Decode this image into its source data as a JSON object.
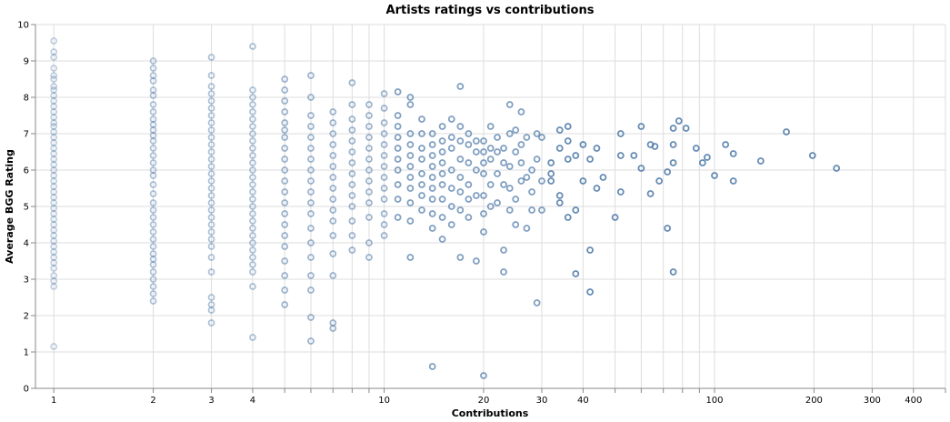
{
  "chart_data": {
    "type": "scatter",
    "title": "Artists ratings vs contributions",
    "xlabel": "Contributions",
    "ylabel": "Average BGG Rating",
    "x_scale": "log",
    "xlim": [
      0.88,
      500
    ],
    "ylim": [
      0,
      10
    ],
    "grid": true,
    "x_tick_labels": [
      "1",
      "2",
      "3",
      "4",
      "10",
      "20",
      "30",
      "40",
      "100",
      "200",
      "300",
      "400"
    ],
    "x_tick_values": [
      1,
      2,
      3,
      4,
      10,
      20,
      30,
      40,
      100,
      200,
      300,
      400
    ],
    "x_minor_ticks": [
      5,
      6,
      7,
      8,
      9,
      50,
      60,
      70,
      80,
      90,
      500
    ],
    "y_ticks": [
      0,
      1,
      2,
      3,
      4,
      5,
      6,
      7,
      8,
      9,
      10
    ],
    "mark": "open-circle",
    "color": "#4c78a8",
    "opacity_encodes": "contributions",
    "points": [
      [
        1,
        9.55
      ],
      [
        1,
        9.25
      ],
      [
        1,
        9.1
      ],
      [
        1,
        8.8
      ],
      [
        1,
        8.6
      ],
      [
        1,
        8.5
      ],
      [
        1,
        8.3
      ],
      [
        1,
        8.2
      ],
      [
        1,
        8.05
      ],
      [
        1,
        7.9
      ],
      [
        1,
        7.75
      ],
      [
        1,
        7.6
      ],
      [
        1,
        7.45
      ],
      [
        1,
        7.3
      ],
      [
        1,
        7.2
      ],
      [
        1,
        7.05
      ],
      [
        1,
        6.9
      ],
      [
        1,
        6.75
      ],
      [
        1,
        6.6
      ],
      [
        1,
        6.45
      ],
      [
        1,
        6.3
      ],
      [
        1,
        6.15
      ],
      [
        1,
        6.0
      ],
      [
        1,
        5.85
      ],
      [
        1,
        5.7
      ],
      [
        1,
        5.55
      ],
      [
        1,
        5.4
      ],
      [
        1,
        5.25
      ],
      [
        1,
        5.1
      ],
      [
        1,
        4.95
      ],
      [
        1,
        4.8
      ],
      [
        1,
        4.65
      ],
      [
        1,
        4.5
      ],
      [
        1,
        4.35
      ],
      [
        1,
        4.2
      ],
      [
        1,
        4.05
      ],
      [
        1,
        3.9
      ],
      [
        1,
        3.75
      ],
      [
        1,
        3.6
      ],
      [
        1,
        3.45
      ],
      [
        1,
        3.3
      ],
      [
        1,
        3.1
      ],
      [
        1,
        2.95
      ],
      [
        1,
        2.8
      ],
      [
        1,
        1.15
      ],
      [
        2,
        9.0
      ],
      [
        2,
        8.8
      ],
      [
        2,
        8.6
      ],
      [
        2,
        8.45
      ],
      [
        2,
        8.2
      ],
      [
        2,
        8.05
      ],
      [
        2,
        7.8
      ],
      [
        2,
        7.6
      ],
      [
        2,
        7.4
      ],
      [
        2,
        7.25
      ],
      [
        2,
        7.1
      ],
      [
        2,
        6.95
      ],
      [
        2,
        6.8
      ],
      [
        2,
        6.6
      ],
      [
        2,
        6.4
      ],
      [
        2,
        6.2
      ],
      [
        2,
        6.0
      ],
      [
        2,
        5.85
      ],
      [
        2,
        5.6
      ],
      [
        2,
        5.35
      ],
      [
        2,
        5.1
      ],
      [
        2,
        4.9
      ],
      [
        2,
        4.7
      ],
      [
        2,
        4.5
      ],
      [
        2,
        4.3
      ],
      [
        2,
        4.1
      ],
      [
        2,
        3.9
      ],
      [
        2,
        3.7
      ],
      [
        2,
        3.55
      ],
      [
        2,
        3.4
      ],
      [
        2,
        3.2
      ],
      [
        2,
        3.0
      ],
      [
        2,
        2.8
      ],
      [
        2,
        2.6
      ],
      [
        2,
        2.4
      ],
      [
        3,
        9.1
      ],
      [
        3,
        8.6
      ],
      [
        3,
        8.3
      ],
      [
        3,
        8.1
      ],
      [
        3,
        7.9
      ],
      [
        3,
        7.7
      ],
      [
        3,
        7.5
      ],
      [
        3,
        7.3
      ],
      [
        3,
        7.1
      ],
      [
        3,
        6.9
      ],
      [
        3,
        6.7
      ],
      [
        3,
        6.5
      ],
      [
        3,
        6.3
      ],
      [
        3,
        6.1
      ],
      [
        3,
        5.9
      ],
      [
        3,
        5.7
      ],
      [
        3,
        5.5
      ],
      [
        3,
        5.3
      ],
      [
        3,
        5.1
      ],
      [
        3,
        4.9
      ],
      [
        3,
        4.7
      ],
      [
        3,
        4.5
      ],
      [
        3,
        4.3
      ],
      [
        3,
        4.1
      ],
      [
        3,
        3.9
      ],
      [
        3,
        3.6
      ],
      [
        3,
        3.2
      ],
      [
        3,
        2.5
      ],
      [
        3,
        2.3
      ],
      [
        3,
        2.15
      ],
      [
        3,
        1.8
      ],
      [
        4,
        9.4
      ],
      [
        4,
        8.2
      ],
      [
        4,
        8.0
      ],
      [
        4,
        7.8
      ],
      [
        4,
        7.6
      ],
      [
        4,
        7.4
      ],
      [
        4,
        7.2
      ],
      [
        4,
        7.0
      ],
      [
        4,
        6.8
      ],
      [
        4,
        6.6
      ],
      [
        4,
        6.4
      ],
      [
        4,
        6.2
      ],
      [
        4,
        6.0
      ],
      [
        4,
        5.8
      ],
      [
        4,
        5.6
      ],
      [
        4,
        5.4
      ],
      [
        4,
        5.2
      ],
      [
        4,
        5.0
      ],
      [
        4,
        4.8
      ],
      [
        4,
        4.6
      ],
      [
        4,
        4.4
      ],
      [
        4,
        4.2
      ],
      [
        4,
        4.0
      ],
      [
        4,
        3.8
      ],
      [
        4,
        3.6
      ],
      [
        4,
        3.4
      ],
      [
        4,
        3.2
      ],
      [
        4,
        2.8
      ],
      [
        4,
        1.4
      ],
      [
        5,
        8.5
      ],
      [
        5,
        8.2
      ],
      [
        5,
        7.9
      ],
      [
        5,
        7.6
      ],
      [
        5,
        7.3
      ],
      [
        5,
        7.1
      ],
      [
        5,
        6.9
      ],
      [
        5,
        6.6
      ],
      [
        5,
        6.3
      ],
      [
        5,
        6.0
      ],
      [
        5,
        5.7
      ],
      [
        5,
        5.4
      ],
      [
        5,
        5.1
      ],
      [
        5,
        4.8
      ],
      [
        5,
        4.5
      ],
      [
        5,
        4.2
      ],
      [
        5,
        3.9
      ],
      [
        5,
        3.5
      ],
      [
        5,
        3.1
      ],
      [
        5,
        2.7
      ],
      [
        5,
        2.3
      ],
      [
        6,
        8.6
      ],
      [
        6,
        8.0
      ],
      [
        6,
        7.5
      ],
      [
        6,
        7.2
      ],
      [
        6,
        6.9
      ],
      [
        6,
        6.6
      ],
      [
        6,
        6.3
      ],
      [
        6,
        6.0
      ],
      [
        6,
        5.7
      ],
      [
        6,
        5.4
      ],
      [
        6,
        5.1
      ],
      [
        6,
        4.8
      ],
      [
        6,
        4.4
      ],
      [
        6,
        4.0
      ],
      [
        6,
        3.6
      ],
      [
        6,
        3.1
      ],
      [
        6,
        2.7
      ],
      [
        6,
        1.95
      ],
      [
        6,
        1.3
      ],
      [
        7,
        7.6
      ],
      [
        7,
        7.3
      ],
      [
        7,
        7.0
      ],
      [
        7,
        6.7
      ],
      [
        7,
        6.4
      ],
      [
        7,
        6.1
      ],
      [
        7,
        5.8
      ],
      [
        7,
        5.5
      ],
      [
        7,
        5.2
      ],
      [
        7,
        4.9
      ],
      [
        7,
        4.6
      ],
      [
        7,
        4.2
      ],
      [
        7,
        3.7
      ],
      [
        7,
        3.1
      ],
      [
        7,
        1.8
      ],
      [
        7,
        1.65
      ],
      [
        8,
        8.4
      ],
      [
        8,
        7.8
      ],
      [
        8,
        7.4
      ],
      [
        8,
        7.1
      ],
      [
        8,
        6.8
      ],
      [
        8,
        6.5
      ],
      [
        8,
        6.2
      ],
      [
        8,
        5.9
      ],
      [
        8,
        5.6
      ],
      [
        8,
        5.3
      ],
      [
        8,
        5.0
      ],
      [
        8,
        4.6
      ],
      [
        8,
        4.2
      ],
      [
        8,
        3.8
      ],
      [
        9,
        7.8
      ],
      [
        9,
        7.5
      ],
      [
        9,
        7.2
      ],
      [
        9,
        6.9
      ],
      [
        9,
        6.6
      ],
      [
        9,
        6.3
      ],
      [
        9,
        6.0
      ],
      [
        9,
        5.7
      ],
      [
        9,
        5.4
      ],
      [
        9,
        5.1
      ],
      [
        9,
        4.7
      ],
      [
        9,
        4.0
      ],
      [
        9,
        3.6
      ],
      [
        10,
        8.1
      ],
      [
        10,
        7.7
      ],
      [
        10,
        7.3
      ],
      [
        10,
        7.0
      ],
      [
        10,
        6.7
      ],
      [
        10,
        6.4
      ],
      [
        10,
        6.1
      ],
      [
        10,
        5.8
      ],
      [
        10,
        5.5
      ],
      [
        10,
        5.2
      ],
      [
        10,
        4.8
      ],
      [
        10,
        4.5
      ],
      [
        10,
        4.2
      ],
      [
        11,
        8.15
      ],
      [
        11,
        7.5
      ],
      [
        11,
        7.2
      ],
      [
        11,
        6.9
      ],
      [
        11,
        6.6
      ],
      [
        11,
        6.3
      ],
      [
        11,
        6.0
      ],
      [
        11,
        5.6
      ],
      [
        11,
        5.2
      ],
      [
        11,
        4.7
      ],
      [
        12,
        8.0
      ],
      [
        12,
        7.8
      ],
      [
        12,
        7.0
      ],
      [
        12,
        6.7
      ],
      [
        12,
        6.4
      ],
      [
        12,
        6.1
      ],
      [
        12,
        5.8
      ],
      [
        12,
        5.5
      ],
      [
        12,
        5.1
      ],
      [
        12,
        4.6
      ],
      [
        12,
        3.6
      ],
      [
        13,
        7.4
      ],
      [
        13,
        7.0
      ],
      [
        13,
        6.6
      ],
      [
        13,
        6.3
      ],
      [
        13,
        5.9
      ],
      [
        13,
        5.6
      ],
      [
        13,
        5.3
      ],
      [
        13,
        4.9
      ],
      [
        14,
        7.0
      ],
      [
        14,
        6.7
      ],
      [
        14,
        6.4
      ],
      [
        14,
        6.1
      ],
      [
        14,
        5.8
      ],
      [
        14,
        5.5
      ],
      [
        14,
        5.2
      ],
      [
        14,
        4.8
      ],
      [
        14,
        4.4
      ],
      [
        14,
        0.6
      ],
      [
        15,
        7.2
      ],
      [
        15,
        6.8
      ],
      [
        15,
        6.5
      ],
      [
        15,
        6.2
      ],
      [
        15,
        5.9
      ],
      [
        15,
        5.6
      ],
      [
        15,
        5.2
      ],
      [
        15,
        4.7
      ],
      [
        15,
        4.1
      ],
      [
        16,
        7.4
      ],
      [
        16,
        6.9
      ],
      [
        16,
        6.6
      ],
      [
        16,
        6.0
      ],
      [
        16,
        5.5
      ],
      [
        16,
        5.0
      ],
      [
        16,
        4.5
      ],
      [
        17,
        8.3
      ],
      [
        17,
        7.2
      ],
      [
        17,
        6.8
      ],
      [
        17,
        6.3
      ],
      [
        17,
        5.8
      ],
      [
        17,
        5.4
      ],
      [
        17,
        4.9
      ],
      [
        17,
        3.6
      ],
      [
        18,
        7.0
      ],
      [
        18,
        6.7
      ],
      [
        18,
        6.2
      ],
      [
        18,
        5.6
      ],
      [
        18,
        5.2
      ],
      [
        18,
        4.7
      ],
      [
        19,
        6.8
      ],
      [
        19,
        6.5
      ],
      [
        19,
        6.0
      ],
      [
        19,
        5.3
      ],
      [
        19,
        3.5
      ],
      [
        20,
        6.8
      ],
      [
        20,
        6.5
      ],
      [
        20,
        6.2
      ],
      [
        20,
        5.9
      ],
      [
        20,
        5.3
      ],
      [
        20,
        4.8
      ],
      [
        20,
        4.3
      ],
      [
        20,
        0.35
      ],
      [
        21,
        7.2
      ],
      [
        21,
        6.6
      ],
      [
        21,
        6.3
      ],
      [
        21,
        5.6
      ],
      [
        21,
        5.0
      ],
      [
        22,
        6.9
      ],
      [
        22,
        6.5
      ],
      [
        22,
        5.9
      ],
      [
        22,
        5.1
      ],
      [
        23,
        6.6
      ],
      [
        23,
        6.2
      ],
      [
        23,
        5.6
      ],
      [
        23,
        3.8
      ],
      [
        23,
        3.2
      ],
      [
        24,
        7.8
      ],
      [
        24,
        7.0
      ],
      [
        24,
        6.1
      ],
      [
        24,
        5.5
      ],
      [
        24,
        4.9
      ],
      [
        25,
        7.1
      ],
      [
        25,
        6.5
      ],
      [
        25,
        5.2
      ],
      [
        25,
        4.5
      ],
      [
        26,
        7.6
      ],
      [
        26,
        6.7
      ],
      [
        26,
        6.2
      ],
      [
        26,
        5.7
      ],
      [
        27,
        6.9
      ],
      [
        27,
        5.8
      ],
      [
        27,
        4.4
      ],
      [
        28,
        6.0
      ],
      [
        28,
        5.4
      ],
      [
        28,
        4.9
      ],
      [
        29,
        7.0
      ],
      [
        29,
        6.3
      ],
      [
        29,
        2.35
      ],
      [
        30,
        6.9
      ],
      [
        30,
        5.7
      ],
      [
        30,
        4.9
      ],
      [
        32,
        6.2
      ],
      [
        32,
        5.9
      ],
      [
        32,
        5.7
      ],
      [
        34,
        7.1
      ],
      [
        34,
        6.6
      ],
      [
        34,
        5.3
      ],
      [
        34,
        5.1
      ],
      [
        36,
        7.2
      ],
      [
        36,
        6.8
      ],
      [
        36,
        6.3
      ],
      [
        36,
        4.7
      ],
      [
        38,
        6.4
      ],
      [
        38,
        4.9
      ],
      [
        38,
        3.15
      ],
      [
        40,
        6.7
      ],
      [
        40,
        5.7
      ],
      [
        42,
        6.3
      ],
      [
        42,
        3.8
      ],
      [
        42,
        2.65
      ],
      [
        44,
        6.6
      ],
      [
        44,
        5.5
      ],
      [
        46,
        5.8
      ],
      [
        50,
        4.7
      ],
      [
        52,
        7.0
      ],
      [
        52,
        6.4
      ],
      [
        52,
        5.4
      ],
      [
        57,
        6.4
      ],
      [
        60,
        7.2
      ],
      [
        60,
        6.05
      ],
      [
        64,
        6.7
      ],
      [
        64,
        5.35
      ],
      [
        66,
        6.65
      ],
      [
        68,
        5.7
      ],
      [
        72,
        5.95
      ],
      [
        72,
        4.4
      ],
      [
        75,
        7.15
      ],
      [
        75,
        6.7
      ],
      [
        75,
        6.2
      ],
      [
        75,
        3.2
      ],
      [
        78,
        7.35
      ],
      [
        82,
        7.15
      ],
      [
        88,
        6.6
      ],
      [
        92,
        6.2
      ],
      [
        95,
        6.35
      ],
      [
        100,
        5.85
      ],
      [
        108,
        6.7
      ],
      [
        114,
        6.45
      ],
      [
        114,
        5.7
      ],
      [
        138,
        6.25
      ],
      [
        165,
        7.05
      ],
      [
        198,
        6.4
      ],
      [
        234,
        6.05
      ]
    ]
  }
}
